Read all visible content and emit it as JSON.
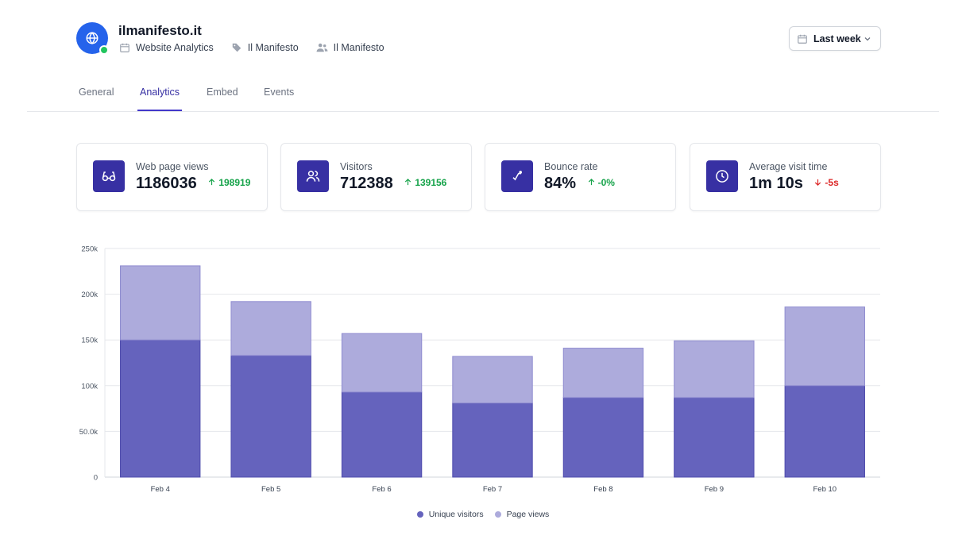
{
  "site": {
    "title": "ilmanifesto.it",
    "meta": [
      "Website Analytics",
      "Il Manifesto",
      "Il Manifesto"
    ],
    "status_color": "#22c55e"
  },
  "range": {
    "label": "Last week"
  },
  "tabs": [
    {
      "label": "General"
    },
    {
      "label": "Analytics",
      "active": true
    },
    {
      "label": "Embed"
    },
    {
      "label": "Events"
    }
  ],
  "stats": [
    {
      "label": "Web page views",
      "value": "1186036",
      "delta": "198919",
      "direction": "up",
      "icon": "glasses-icon"
    },
    {
      "label": "Visitors",
      "value": "712388",
      "delta": "139156",
      "direction": "up",
      "icon": "users-icon"
    },
    {
      "label": "Bounce rate",
      "value": "84%",
      "delta": "-0%",
      "direction": "up",
      "icon": "bounce-icon"
    },
    {
      "label": "Average visit time",
      "value": "1m 10s",
      "delta": "-5s",
      "direction": "down",
      "icon": "clock-icon"
    }
  ],
  "colors": {
    "accent": "#3730a3",
    "unique": "#6563bd",
    "page": "#adabdc",
    "up": "#16a34a",
    "down": "#dc2626"
  },
  "chart_data": {
    "type": "bar",
    "stacked": true,
    "categories": [
      "Feb 4",
      "Feb 5",
      "Feb 6",
      "Feb 7",
      "Feb 8",
      "Feb 9",
      "Feb 10"
    ],
    "series": [
      {
        "name": "Unique visitors",
        "values": [
          150000,
          133000,
          93000,
          81000,
          87000,
          87000,
          100000
        ]
      },
      {
        "name": "Page views",
        "values": [
          81000,
          59000,
          64000,
          51000,
          54000,
          62000,
          86000
        ]
      }
    ],
    "yticks": [
      "0",
      "50.0k",
      "100k",
      "150k",
      "200k",
      "250k"
    ],
    "ylim": [
      0,
      250000
    ],
    "grid": true,
    "legend": "bottom-center"
  }
}
